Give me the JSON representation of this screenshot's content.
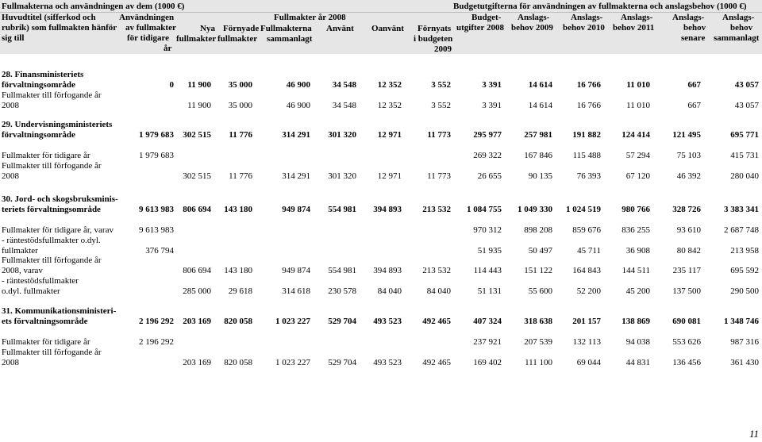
{
  "header": {
    "left_title": "Fullmakterna och användningen av dem (1000 €)",
    "right_title": "Budgetutgifterna för användningen av fullmakterna och anslagsbehov (1000 €)",
    "col_main_1": "Huvudtitel (sifferkod och",
    "col_main_2": "rubrik) som fullmakten hänför",
    "col_main_3": "sig till",
    "col_prev_1": "Användningen",
    "col_prev_2": "av fullmakter",
    "col_prev_3": "för tidigare",
    "col_prev_4": "år",
    "group_2008": "Fullmakter år 2008",
    "col_new_1": "Nya",
    "col_new_2": "fullmakter",
    "col_renew_1": "Förnyade",
    "col_renew_2": "fullmakter",
    "col_total_1": "Fullmakterna",
    "col_total_2": "sammanlagt",
    "col_used": "Använt",
    "col_unused": "Oanvänt",
    "col_renewbud_1": "Förnyats",
    "col_renewbud_2": "i budgeten",
    "col_renewbud_3": "2009",
    "col_budget_1": "Budget-",
    "col_budget_2": "utgifter 2008",
    "col_a2009_1": "Anslags-",
    "col_a2009_2": "behov 2009",
    "col_a2010_1": "Anslags-",
    "col_a2010_2": "behov 2010",
    "col_a2011_1": "Anslags-",
    "col_a2011_2": "behov 2011",
    "col_later_1": "Anslags-",
    "col_later_2": "behov",
    "col_later_3": "senare",
    "col_sum_1": "Anslags-",
    "col_sum_2": "behov",
    "col_sum_3": "sammanlagt"
  },
  "rows": [
    {
      "l1": "28. Finansministeriets",
      "l2": "förvaltningsområde",
      "bold": true,
      "v": [
        "0",
        "11 900",
        "35 000",
        "46 900",
        "34 548",
        "12 352",
        "3 552",
        "3 391",
        "14 614",
        "16 766",
        "11 010",
        "667",
        "43 057"
      ]
    },
    {
      "l1": "Fullmakter till förfogande år",
      "l2": "2008",
      "bold": false,
      "v": [
        "",
        "11 900",
        "35 000",
        "46 900",
        "34 548",
        "12 352",
        "3 552",
        "3 391",
        "14 614",
        "16 766",
        "11 010",
        "667",
        "43 057"
      ]
    },
    {
      "l1": "29. Undervisningsministeriets",
      "l2": "förvaltningsområde",
      "bold": true,
      "v": [
        "1 979 683",
        "302 515",
        "11 776",
        "314 291",
        "301 320",
        "12 971",
        "11 773",
        "295 977",
        "257 981",
        "191 882",
        "124 414",
        "121 495",
        "695 771"
      ]
    },
    {
      "l1": "",
      "l2": "Fullmakter för tidigare år",
      "bold": false,
      "v": [
        "1 979 683",
        "",
        "",
        "",
        "",
        "",
        "",
        "269 322",
        "167 846",
        "115 488",
        "57 294",
        "75 103",
        "415 731"
      ]
    },
    {
      "l1": "Fullmakter till förfogande år",
      "l2": "2008",
      "bold": false,
      "v": [
        "",
        "302 515",
        "11 776",
        "314 291",
        "301 320",
        "12 971",
        "11 773",
        "26 655",
        "90 135",
        "76 393",
        "67 120",
        "46 392",
        "280 040"
      ]
    },
    {
      "l1": "30. Jord- och skogsbruksminis-",
      "l2": "teriets förvaltningsområde",
      "bold": true,
      "v": [
        "9 613 983",
        "806 694",
        "143 180",
        "949 874",
        "554 981",
        "394 893",
        "213 532",
        "1 084 755",
        "1 049 330",
        "1 024 519",
        "980 766",
        "328 726",
        "3 383 341"
      ]
    },
    {
      "l1": "",
      "l2": "Fullmakter för tidigare år, varav",
      "bold": false,
      "v": [
        "9 613 983",
        "",
        "",
        "",
        "",
        "",
        "",
        "970 312",
        "898 208",
        "859 676",
        "836 255",
        "93 610",
        "2 687 748"
      ]
    },
    {
      "l1": " - räntestödsfullmakter o.dyl.",
      "l2": "fullmakter",
      "bold": false,
      "v": [
        "376 794",
        "",
        "",
        "",
        "",
        "",
        "",
        "51 935",
        "50 497",
        "45 711",
        "36 908",
        "80 842",
        "213 958"
      ]
    },
    {
      "l1": "Fullmakter till förfogande år",
      "l2": "2008, varav",
      "bold": false,
      "v": [
        "",
        "806 694",
        "143 180",
        "949 874",
        "554 981",
        "394 893",
        "213 532",
        "114 443",
        "151 122",
        "164 843",
        "144 511",
        "235 117",
        "695 592"
      ]
    },
    {
      "l1": " - räntestödsfullmakter",
      "l2": "o.dyl. fullmakter",
      "bold": false,
      "v": [
        "",
        "285 000",
        "29 618",
        "314 618",
        "230 578",
        "84 040",
        "84 040",
        "51 131",
        "55 600",
        "52 200",
        "45 200",
        "137 500",
        "290 500"
      ]
    },
    {
      "l1": "31. Kommunikationsministeri-",
      "l2": "ets förvaltningsområde",
      "bold": true,
      "v": [
        "2 196 292",
        "203 169",
        "820 058",
        "1 023 227",
        "529 704",
        "493 523",
        "492 465",
        "407 324",
        "318 638",
        "201 157",
        "138 869",
        "690 081",
        "1 348 746"
      ]
    },
    {
      "l1": "",
      "l2": "Fullmakter för tidigare år",
      "bold": false,
      "v": [
        "2 196 292",
        "",
        "",
        "",
        "",
        "",
        "",
        "237 921",
        "207 539",
        "132 113",
        "94 038",
        "553 626",
        "987 316"
      ]
    },
    {
      "l1": "Fullmakter till förfogande år",
      "l2": "2008",
      "bold": false,
      "v": [
        "",
        "203 169",
        "820 058",
        "1 023 227",
        "529 704",
        "493 523",
        "492 465",
        "169 402",
        "111 100",
        "69 044",
        "44 831",
        "136 456",
        "361 430"
      ]
    }
  ],
  "page_number": "11"
}
